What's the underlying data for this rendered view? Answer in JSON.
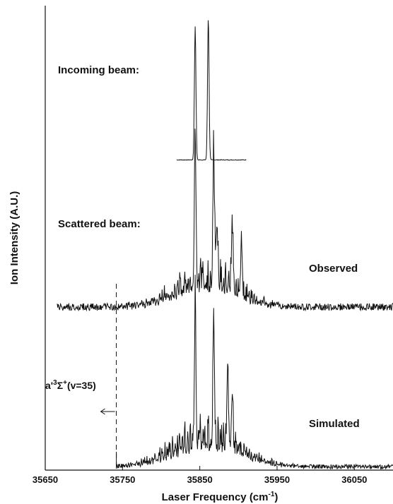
{
  "chart_data": {
    "type": "line",
    "title": "",
    "xlabel": "Laser Frequency (cm",
    "xlabel_sup": "-1",
    "xlabel_close": ")",
    "ylabel": "Ion Intensity (A.U.)",
    "xlim": [
      35650,
      36100
    ],
    "x_ticks": [
      35650,
      35750,
      35850,
      35950,
      36050
    ],
    "x_tick_labels": [
      "35650",
      "35750",
      "35850",
      "35950",
      "36050"
    ],
    "grid": false,
    "series": [
      {
        "label": "Incoming beam:",
        "x_range": [
          35820,
          35910
        ],
        "peaks": [
          {
            "x": 35844,
            "height": 0.88
          },
          {
            "x": 35861,
            "height": 0.94
          }
        ]
      },
      {
        "label": "Scattered beam:",
        "right_label": "Observed",
        "x_range": [
          35665,
          36100
        ],
        "peaks": [
          {
            "x": 35844,
            "height": 0.98
          },
          {
            "x": 35868,
            "height": 0.94
          },
          {
            "x": 35892,
            "height": 0.48
          },
          {
            "x": 35872,
            "height": 0.44
          },
          {
            "x": 35904,
            "height": 0.38
          }
        ],
        "envelope_center": 35860,
        "envelope_height": 0.32
      },
      {
        "right_label": "Simulated",
        "x_range": [
          35742,
          36100
        ],
        "peaks": [
          {
            "x": 35844,
            "height": 0.98
          },
          {
            "x": 35868,
            "height": 0.92
          },
          {
            "x": 35886,
            "height": 0.62
          },
          {
            "x": 35892,
            "height": 0.4
          }
        ],
        "envelope_center": 35860,
        "envelope_height": 0.34
      }
    ],
    "annotation": {
      "text": "a'³Σ⁺(v=35)",
      "text_base": "a'",
      "text_sup1": "3",
      "text_sigma": "Σ",
      "text_sup2": "+",
      "text_tail": "(v=35)",
      "dashed_x": 35742,
      "arrow": "left"
    }
  }
}
